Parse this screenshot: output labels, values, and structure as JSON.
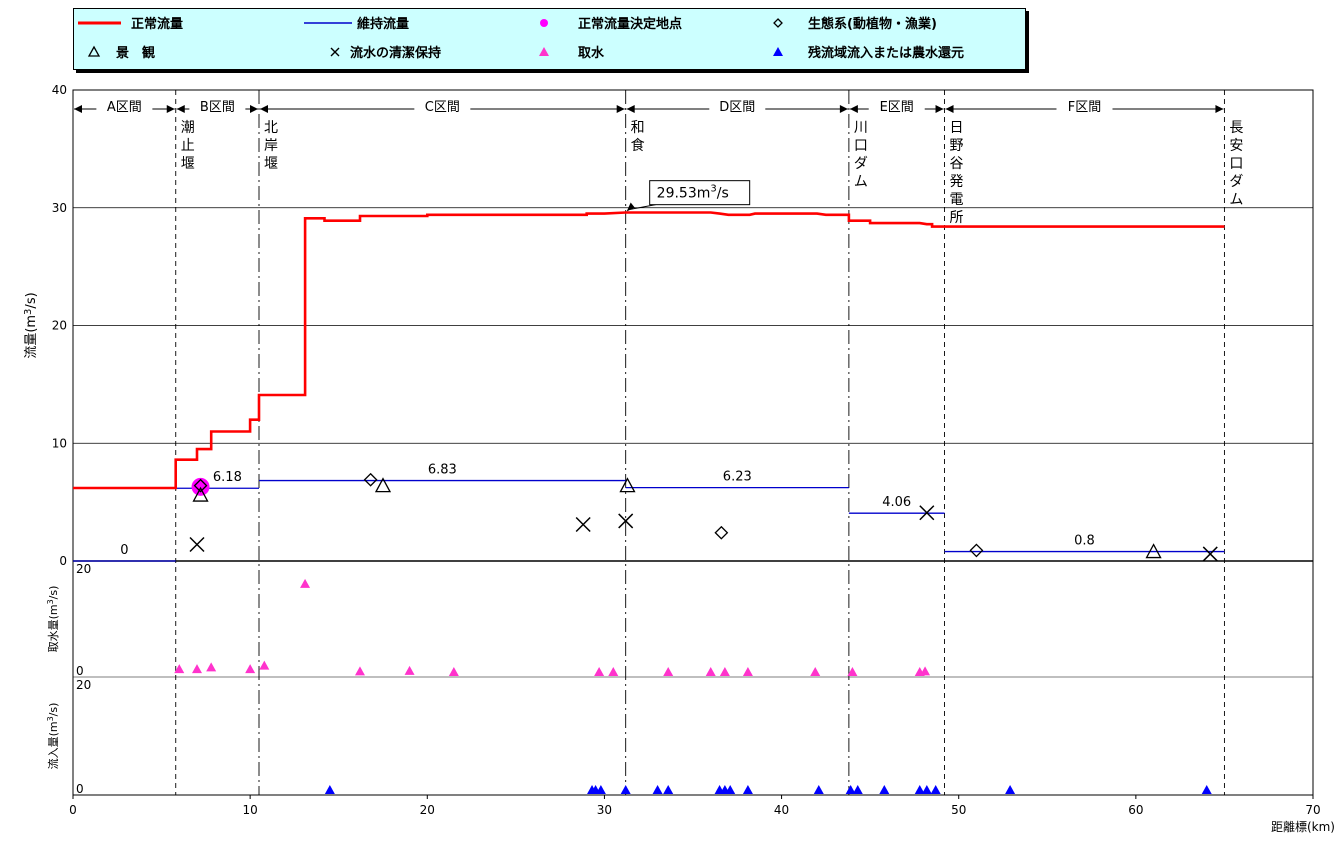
{
  "colors": {
    "normal_flow": "#ff0000",
    "maintenance_flow": "#0000cc",
    "decision_point": "#ff00ff",
    "intake": "#ff33cc",
    "inflow": "#0000ff",
    "legend_bg": "#ccffff"
  },
  "legend": [
    {
      "key": "normal_flow",
      "label": "正常流量",
      "symbol": "red-line"
    },
    {
      "key": "maintenance_flow",
      "label": "維持流量",
      "symbol": "blue-line"
    },
    {
      "key": "decision_point",
      "label": "正常流量決定地点",
      "symbol": "magenta-circle"
    },
    {
      "key": "ecosystem",
      "label": "生態系(動植物・漁業)",
      "symbol": "diamond"
    },
    {
      "key": "landscape",
      "label": "景　観",
      "symbol": "open-triangle"
    },
    {
      "key": "cleanliness",
      "label": "流水の清潔保持",
      "symbol": "cross"
    },
    {
      "key": "intake",
      "label": "取水",
      "symbol": "magenta-triangle"
    },
    {
      "key": "inflow",
      "label": "残流域流入または農水還元",
      "symbol": "blue-triangle"
    }
  ],
  "chart_data": {
    "type": "line",
    "x_label": "距離標(km)",
    "xlim": [
      0,
      70
    ],
    "x_ticks": [
      0,
      10,
      20,
      30,
      40,
      50,
      60,
      70
    ],
    "main_panel": {
      "ylabel_main": "流量",
      "ylabel_unit": "(m",
      "ylabel_sup": "3",
      "ylabel_tail": "/s)",
      "ylim": [
        0,
        40
      ],
      "y_ticks": [
        0,
        10,
        20,
        30,
        40
      ],
      "grid": true
    },
    "sections": [
      {
        "label": "A区間",
        "x0": 0,
        "x1": 5.8
      },
      {
        "label": "B区間",
        "x0": 5.8,
        "x1": 10.5
      },
      {
        "label": "C区間",
        "x0": 10.5,
        "x1": 31.2
      },
      {
        "label": "D区間",
        "x0": 31.2,
        "x1": 43.8
      },
      {
        "label": "E区間",
        "x0": 43.8,
        "x1": 49.2
      },
      {
        "label": "F区間",
        "x0": 49.2,
        "x1": 65
      }
    ],
    "boundaries": [
      {
        "x": 5.8,
        "style": "dashed",
        "label": "潮止堰"
      },
      {
        "x": 10.5,
        "style": "dashdot",
        "label": "北岸堰"
      },
      {
        "x": 31.2,
        "style": "dashdot",
        "label": "和食"
      },
      {
        "x": 43.8,
        "style": "dashdot",
        "label": "川口ダム"
      },
      {
        "x": 49.2,
        "style": "dashed",
        "label": "日野谷発電所"
      },
      {
        "x": 65,
        "style": "dashed",
        "label": "長安口ダム"
      }
    ],
    "series": [
      {
        "name": "正常流量",
        "type": "step",
        "points": [
          [
            0,
            6.2
          ],
          [
            5.8,
            6.2
          ],
          [
            5.8,
            8.6
          ],
          [
            7,
            8.6
          ],
          [
            7,
            9.5
          ],
          [
            7.8,
            9.5
          ],
          [
            7.8,
            11
          ],
          [
            10,
            11
          ],
          [
            10,
            12
          ],
          [
            10.5,
            12
          ],
          [
            10.5,
            14.1
          ],
          [
            13.1,
            14.1
          ],
          [
            13.1,
            29.1
          ],
          [
            14.2,
            29.1
          ],
          [
            14.2,
            28.9
          ],
          [
            16.2,
            28.9
          ],
          [
            16.2,
            29.3
          ],
          [
            20,
            29.3
          ],
          [
            20,
            29.4
          ],
          [
            29,
            29.4
          ],
          [
            29,
            29.5
          ],
          [
            30,
            29.5
          ],
          [
            31.2,
            29.6
          ],
          [
            36,
            29.6
          ],
          [
            36.5,
            29.5
          ],
          [
            37,
            29.4
          ],
          [
            38.2,
            29.4
          ],
          [
            38.5,
            29.5
          ],
          [
            42,
            29.5
          ],
          [
            42.5,
            29.4
          ],
          [
            43.8,
            29.4
          ],
          [
            43.8,
            28.9
          ],
          [
            45,
            28.9
          ],
          [
            45,
            28.7
          ],
          [
            47.8,
            28.7
          ],
          [
            48.2,
            28.6
          ],
          [
            48.5,
            28.6
          ],
          [
            48.5,
            28.4
          ],
          [
            65,
            28.4
          ]
        ]
      },
      {
        "name": "維持流量",
        "type": "segments",
        "segments": [
          {
            "x0": 0,
            "x1": 5.8,
            "y": 0,
            "label": "0"
          },
          {
            "x0": 5.8,
            "x1": 10.5,
            "y": 6.18,
            "label": "6.18"
          },
          {
            "x0": 10.5,
            "x1": 31.2,
            "y": 6.83,
            "label": "6.83"
          },
          {
            "x0": 31.2,
            "x1": 43.8,
            "y": 6.23,
            "label": "6.23"
          },
          {
            "x0": 43.8,
            "x1": 49.2,
            "y": 4.06,
            "label": "4.06"
          },
          {
            "x0": 49.2,
            "x1": 65,
            "y": 0.8,
            "label": "0.8"
          }
        ]
      }
    ],
    "decision_point": {
      "x": 7.2,
      "y": 6.3
    },
    "ecosystem_points": [
      [
        7.2,
        6.4
      ],
      [
        16.8,
        6.9
      ],
      [
        36.6,
        2.4
      ],
      [
        51,
        0.9
      ]
    ],
    "landscape_points": [
      [
        7.2,
        5.6
      ],
      [
        17.5,
        6.4
      ],
      [
        31.3,
        6.4
      ],
      [
        61,
        0.8
      ]
    ],
    "cleanliness_points": [
      [
        7,
        1.4
      ],
      [
        28.8,
        3.1
      ],
      [
        31.2,
        3.4
      ],
      [
        48.2,
        4.1
      ],
      [
        64.2,
        0.6
      ]
    ],
    "callout": {
      "x": 31.2,
      "y": 29.6,
      "text": "29.53m",
      "sup": "3",
      "tail": "/s"
    },
    "intake_panel": {
      "ylabel_main": "取水量",
      "ylabel_unit": "(m",
      "ylabel_sup": "3",
      "ylabel_tail": "/s)",
      "ylim": [
        0,
        20
      ],
      "y_ticks": [
        0,
        20
      ],
      "points": [
        [
          6,
          0.5
        ],
        [
          7,
          0.5
        ],
        [
          7.8,
          0.8
        ],
        [
          10,
          0.5
        ],
        [
          10.8,
          1.1
        ],
        [
          13.1,
          15.2
        ],
        [
          16.2,
          0.1
        ],
        [
          19,
          0.2
        ],
        [
          21.5,
          0
        ],
        [
          29.7,
          0
        ],
        [
          30.5,
          0
        ],
        [
          33.6,
          0
        ],
        [
          36,
          0
        ],
        [
          36.8,
          0
        ],
        [
          38.1,
          0
        ],
        [
          41.9,
          0
        ],
        [
          44,
          0
        ],
        [
          47.8,
          0
        ],
        [
          48.1,
          0.1
        ]
      ]
    },
    "inflow_panel": {
      "ylabel_main": "流入量",
      "ylabel_unit": "(m",
      "ylabel_sup": "3",
      "ylabel_tail": "/s)",
      "ylim": [
        0,
        20
      ],
      "y_ticks": [
        0,
        20
      ],
      "points": [
        [
          14.5,
          0
        ],
        [
          29.3,
          0
        ],
        [
          29.5,
          0
        ],
        [
          29.8,
          0
        ],
        [
          31.2,
          0
        ],
        [
          33,
          0
        ],
        [
          33.6,
          0
        ],
        [
          36.5,
          0
        ],
        [
          36.8,
          0
        ],
        [
          37.1,
          0
        ],
        [
          38.1,
          0
        ],
        [
          42.1,
          0
        ],
        [
          43.9,
          0
        ],
        [
          44.3,
          0
        ],
        [
          45.8,
          0
        ],
        [
          47.8,
          0
        ],
        [
          48.2,
          0
        ],
        [
          48.7,
          0
        ],
        [
          52.9,
          0
        ],
        [
          64,
          0
        ]
      ]
    }
  }
}
